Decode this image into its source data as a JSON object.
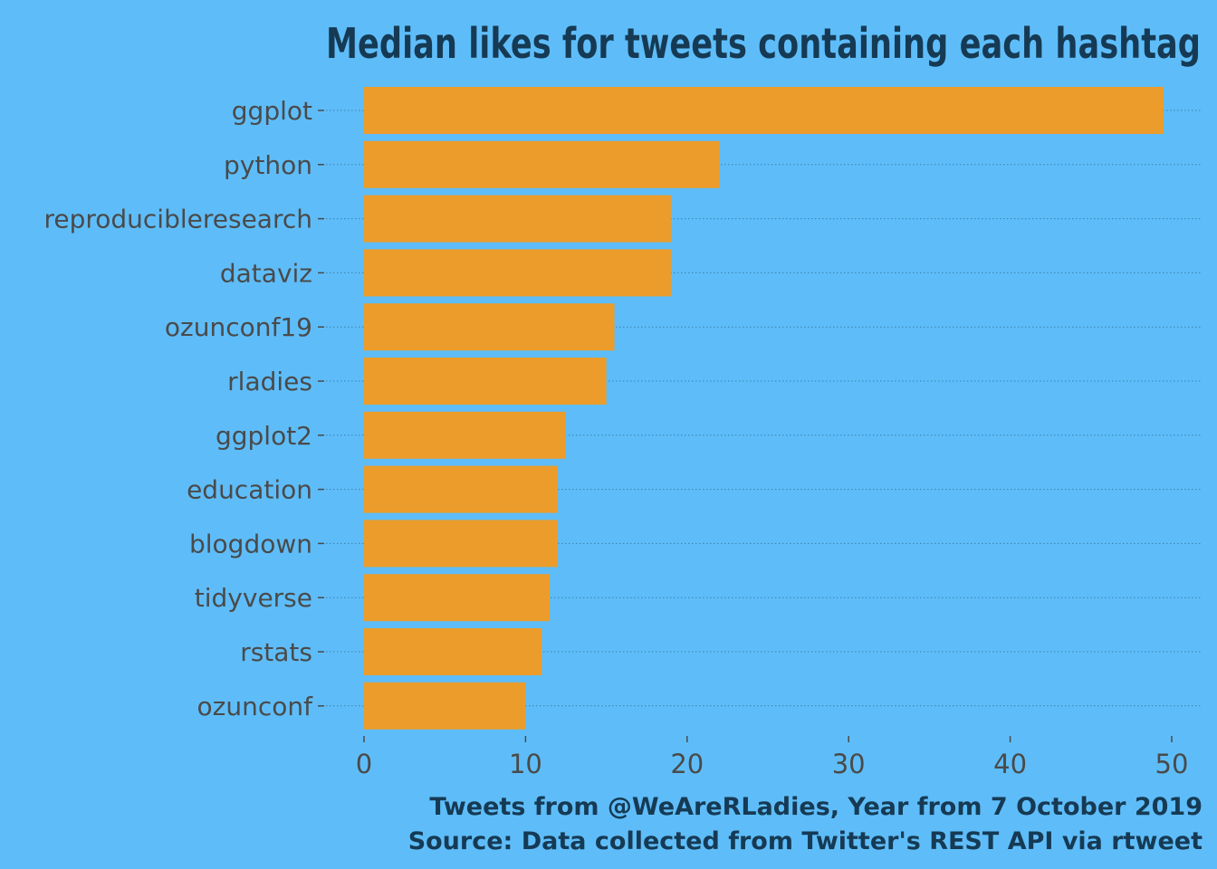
{
  "colors": {
    "background": "#5EBDF9",
    "bar": "#EC9C2B",
    "title": "#163A54",
    "label": "#4A4A4A",
    "gridline": "#3F7FA8"
  },
  "chart_data": {
    "type": "bar",
    "orientation": "horizontal",
    "title": "Median likes for tweets containing each hashtag",
    "xlabel": "",
    "ylabel": "",
    "categories": [
      "ggplot",
      "python",
      "reproducibleresearch",
      "dataviz",
      "ozunconf19",
      "rladies",
      "ggplot2",
      "education",
      "blogdown",
      "tidyverse",
      "rstats",
      "ozunconf"
    ],
    "values": [
      49.5,
      22,
      19,
      19,
      15.5,
      15,
      12.5,
      12,
      12,
      11.5,
      11,
      10
    ],
    "xlim": [
      0,
      50
    ],
    "xticks": [
      0,
      10,
      20,
      30,
      40,
      50
    ],
    "grid": "dotted horizontal lines at categories",
    "caption_lines": [
      "Tweets from @WeAreRLadies, Year from 7 October 2019",
      "Source: Data collected from Twitter's REST API via rtweet"
    ]
  }
}
